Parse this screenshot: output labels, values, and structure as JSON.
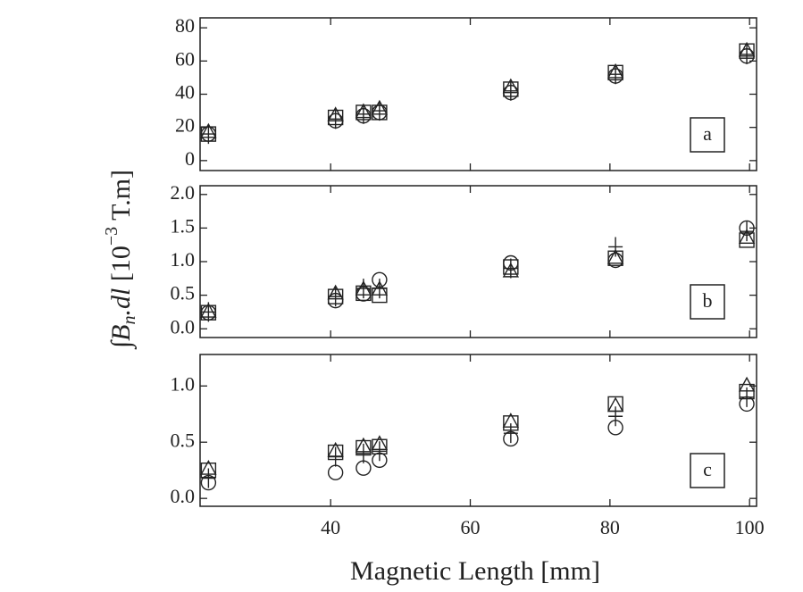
{
  "y_label_parts": [
    "∫",
    "B",
    "n",
    ".dl",
    "  [10",
    "−3",
    " T.m]"
  ],
  "chart_data": [
    {
      "type": "scatter",
      "panel_label": "a",
      "xlim": [
        21.3,
        101
      ],
      "xticks": [
        40,
        60,
        80,
        100
      ],
      "xtick_labels": false,
      "ylim": [
        -6,
        86
      ],
      "yticks": [
        0,
        20,
        40,
        60,
        80
      ],
      "x": [
        22.5,
        40.7,
        44.7,
        47.0,
        65.8,
        80.8,
        99.6
      ],
      "series": [
        {
          "marker": "circle",
          "color": "#222222",
          "values": [
            16,
            24,
            27,
            29,
            41,
            51,
            63
          ]
        },
        {
          "marker": "plus",
          "color": "#222222",
          "values": [
            16,
            25,
            28,
            30,
            42,
            52,
            64
          ]
        },
        {
          "marker": "triangle",
          "color": "#222222",
          "values": [
            17,
            27,
            29,
            31,
            44,
            53,
            66
          ]
        },
        {
          "marker": "square",
          "color": "#222222",
          "values": [
            16,
            26,
            29,
            29,
            43,
            53,
            66
          ]
        }
      ]
    },
    {
      "type": "scatter",
      "panel_label": "b",
      "xlim": [
        21.3,
        101
      ],
      "xticks": [
        40,
        60,
        80,
        100
      ],
      "xtick_labels": false,
      "ylim": [
        -0.13,
        2.13
      ],
      "yticks": [
        {
          "value": 0,
          "label": "0.0"
        },
        0.5,
        {
          "value": 1,
          "label": "1.0"
        },
        1.5,
        {
          "value": 2,
          "label": "2.0"
        }
      ],
      "x": [
        22.5,
        40.7,
        44.7,
        47.0,
        65.8,
        80.8,
        99.6
      ],
      "series": [
        {
          "marker": "circle",
          "color": "#222222",
          "values": [
            0.24,
            0.42,
            0.52,
            0.73,
            0.98,
            1.02,
            1.5
          ]
        },
        {
          "marker": "plus",
          "color": "#222222",
          "values": [
            0.25,
            0.48,
            0.6,
            0.6,
            0.9,
            1.22,
            1.45
          ]
        },
        {
          "marker": "triangle",
          "color": "#222222",
          "values": [
            0.25,
            0.52,
            0.58,
            0.58,
            0.85,
            1.05,
            1.35
          ]
        },
        {
          "marker": "square",
          "color": "#222222",
          "values": [
            0.24,
            0.48,
            0.53,
            0.5,
            0.92,
            1.05,
            1.32
          ]
        }
      ]
    },
    {
      "type": "scatter",
      "panel_label": "c",
      "xlim": [
        21.3,
        101
      ],
      "xticks": [
        40,
        60,
        80,
        100
      ],
      "xtick_labels": true,
      "x_label": "Magnetic Length [mm]",
      "ylim": [
        -0.07,
        1.28
      ],
      "yticks": [
        {
          "value": 0,
          "label": "0.0"
        },
        0.5,
        {
          "value": 1,
          "label": "1.0"
        }
      ],
      "x": [
        22.5,
        40.7,
        44.7,
        47.0,
        65.8,
        80.8,
        99.6
      ],
      "series": [
        {
          "marker": "circle",
          "color": "#222222",
          "values": [
            0.14,
            0.23,
            0.27,
            0.34,
            0.53,
            0.63,
            0.84
          ]
        },
        {
          "marker": "plus",
          "color": "#222222",
          "values": [
            0.18,
            0.37,
            0.4,
            0.42,
            0.58,
            0.73,
            0.9
          ]
        },
        {
          "marker": "triangle",
          "color": "#222222",
          "values": [
            0.26,
            0.42,
            0.46,
            0.48,
            0.68,
            0.82,
            1.0
          ]
        },
        {
          "marker": "square",
          "color": "#222222",
          "values": [
            0.25,
            0.41,
            0.45,
            0.46,
            0.67,
            0.84,
            0.95
          ]
        }
      ]
    }
  ]
}
